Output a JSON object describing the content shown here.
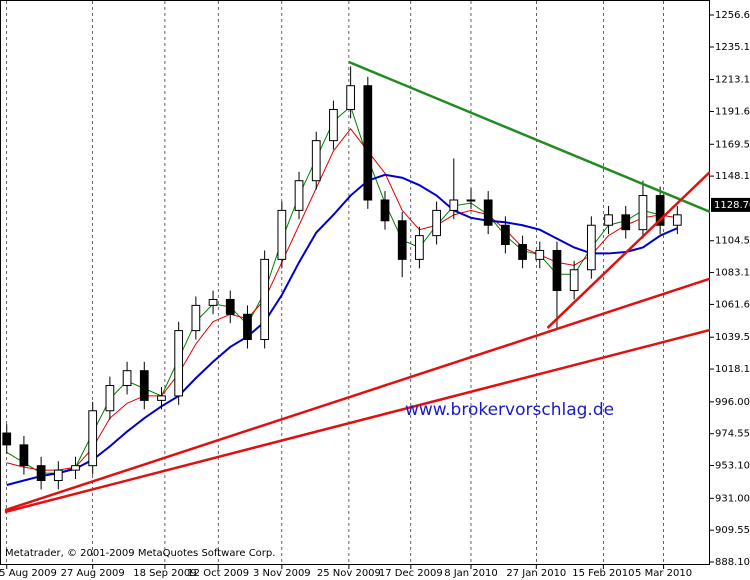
{
  "chart_data": {
    "type": "candlestick",
    "watermark": "www.brokervorschlag.de",
    "copyright": "Metatrader, © 2001-2009 MetaQuotes Software Corp.",
    "xlim": [
      -0.1,
      40.9
    ],
    "ylim": [
      888.1,
      1256.65
    ],
    "yticks": [
      1256.65,
      {
        "value": 1235.1,
        "label": "1235.10"
      },
      1213.15,
      1191.65,
      1169.55,
      {
        "value": 1148.1,
        "label": "1148.10"
      },
      1104.55,
      {
        "value": 1083.1,
        "label": "1083.10"
      },
      1061.65,
      1039.55,
      {
        "value": 1018.1,
        "label": "1018.10"
      },
      {
        "value": 996,
        "label": "996.00"
      },
      974.55,
      {
        "value": 953.1,
        "label": "953.10"
      },
      {
        "value": 931,
        "label": "931.00"
      },
      909.55,
      {
        "value": 888.1,
        "label": "888.10"
      }
    ],
    "xticks": [
      {
        "value": 0,
        "label": "5 Aug 2009"
      },
      {
        "value": 5,
        "label": "27 Aug 2009"
      },
      {
        "value": 9.2,
        "label": "18 Sep 2009"
      },
      {
        "value": 12.3,
        "label": "12 Oct 2009"
      },
      {
        "value": 16,
        "label": "3 Nov 2009"
      },
      {
        "value": 19.9,
        "label": "25 Nov 2009"
      },
      {
        "value": 23.5,
        "label": "17 Dec 2009"
      },
      {
        "value": 27,
        "label": "8 Jan 2010"
      },
      {
        "value": 30.8,
        "label": "27 Jan 2010"
      },
      {
        "value": 34.7,
        "label": "15 Feb 2010"
      },
      {
        "value": 38.2,
        "label": "5 Mar 2010"
      }
    ],
    "last_price": {
      "value": 1128.7,
      "label": "1128.70"
    },
    "open": [
      975,
      967,
      953,
      943,
      950,
      953,
      990,
      1007,
      1017,
      997,
      1000,
      1044,
      1061,
      1065,
      1055,
      1038,
      1092,
      1125,
      1145,
      1172,
      1193,
      1209,
      1132,
      1118,
      1092,
      1108,
      1125,
      1132,
      1132,
      1115,
      1102,
      1092,
      1098,
      1071,
      1085,
      1115,
      1122,
      1112,
      1135,
      1115
    ],
    "high": [
      981,
      973,
      959,
      956,
      959,
      996,
      1013,
      1023,
      1023,
      1006,
      1050,
      1067,
      1071,
      1071,
      1061,
      1098,
      1131,
      1151,
      1178,
      1199,
      1222,
      1215,
      1138,
      1124,
      1114,
      1131,
      1160,
      1140,
      1138,
      1121,
      1108,
      1104,
      1104,
      1091,
      1121,
      1128,
      1128,
      1145,
      1141,
      1128
    ],
    "low": [
      961,
      947,
      937,
      937,
      944,
      947,
      984,
      1001,
      991,
      991,
      994,
      1038,
      1055,
      1049,
      1032,
      1032,
      1086,
      1119,
      1139,
      1166,
      1187,
      1126,
      1112,
      1080,
      1086,
      1102,
      1119,
      1126,
      1109,
      1096,
      1086,
      1086,
      1045,
      1065,
      1079,
      1109,
      1106,
      1106,
      1109,
      1109
    ],
    "close": [
      967,
      953,
      943,
      950,
      953,
      990,
      1007,
      1017,
      997,
      1000,
      1044,
      1061,
      1065,
      1055,
      1038,
      1092,
      1125,
      1145,
      1172,
      1193,
      1209,
      1132,
      1118,
      1092,
      1108,
      1125,
      1132,
      1132,
      1115,
      1102,
      1092,
      1098,
      1071,
      1085,
      1115,
      1122,
      1112,
      1135,
      1115,
      1122
    ],
    "bull_color": "#ffffff",
    "bear_color": "#000000",
    "lines": [
      {
        "color": "#008000",
        "width": 1,
        "values": [
          962,
          955,
          948,
          948,
          952,
          975,
          998,
          1010,
          1005,
          1000,
          1025,
          1050,
          1062,
          1060,
          1048,
          1070,
          1105,
          1135,
          1160,
          1185,
          1195,
          1160,
          1130,
          1105,
          1100,
          1115,
          1128,
          1130,
          1122,
          1108,
          1098,
          1095,
          1082,
          1082,
          1100,
          1115,
          1118,
          1125,
          1122,
          1120
        ]
      },
      {
        "color": "#e00000",
        "width": 1,
        "values": [
          955,
          952,
          950,
          950,
          952,
          965,
          985,
          995,
          1000,
          1000,
          1015,
          1035,
          1050,
          1055,
          1052,
          1065,
          1090,
          1115,
          1140,
          1165,
          1180,
          1165,
          1150,
          1125,
          1112,
          1115,
          1122,
          1125,
          1122,
          1112,
          1100,
          1095,
          1090,
          1088,
          1095,
          1108,
          1115,
          1120,
          1122,
          1120
        ]
      },
      {
        "color": "#0000cc",
        "width": 2,
        "values": [
          940,
          943,
          946,
          948,
          951,
          957,
          966,
          976,
          985,
          993,
          1000,
          1012,
          1023,
          1033,
          1040,
          1050,
          1068,
          1090,
          1110,
          1122,
          1135,
          1145,
          1149,
          1147,
          1142,
          1135,
          1125,
          1120,
          1118,
          1117,
          1115,
          1112,
          1106,
          1100,
          1096,
          1096,
          1097,
          1100,
          1108,
          1113
        ]
      }
    ],
    "trendlines": [
      {
        "color": "#228b22",
        "x": [
          19.9,
          40.9
        ],
        "y": [
          1225,
          1124
        ]
      },
      {
        "color": "#e01010",
        "x": [
          -0.1,
          40.9
        ],
        "y": [
          923,
          1079
        ]
      },
      {
        "color": "#e01010",
        "x": [
          -0.1,
          40.9
        ],
        "y": [
          921.8,
          1044.4
        ]
      },
      {
        "color": "#e01010",
        "x": [
          31.45,
          40.9
        ],
        "y": [
          1045.8,
          1150.9
        ]
      }
    ]
  }
}
